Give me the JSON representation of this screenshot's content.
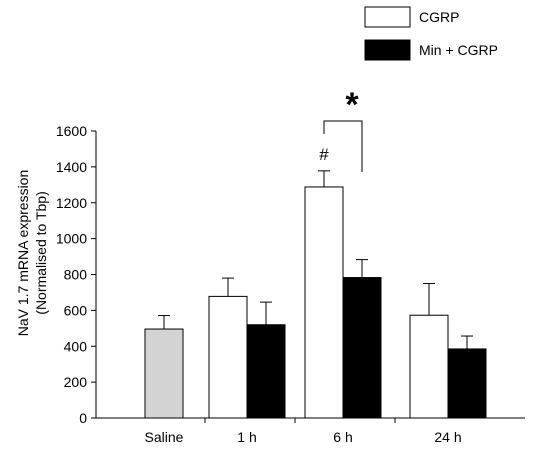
{
  "chart_data": {
    "type": "bar",
    "title": "",
    "xlabel": "",
    "ylabel_lines": [
      "NaV 1.7 mRNA expression",
      "(Normalised to Tbp)"
    ],
    "ylim": [
      0,
      1600
    ],
    "yticks": [
      0,
      200,
      400,
      600,
      800,
      1000,
      1200,
      1400,
      1600
    ],
    "categories": [
      "Saline",
      "1 h",
      "6 h",
      "24 h"
    ],
    "series": [
      {
        "name": "",
        "key": "saline",
        "color": "#d3d3d3",
        "values": [
          496,
          null,
          null,
          null
        ],
        "errors": [
          75,
          null,
          null,
          null
        ]
      },
      {
        "name": "CGRP",
        "key": "cgrp",
        "color": "#ffffff",
        "values": [
          null,
          678,
          1288,
          573
        ],
        "errors": [
          null,
          102,
          90,
          177
        ]
      },
      {
        "name": "Min + CGRP",
        "key": "min-cgrp",
        "color": "#000000",
        "values": [
          null,
          520,
          783,
          385
        ],
        "errors": [
          null,
          126,
          100,
          72
        ]
      }
    ],
    "legend": {
      "position": "top-right",
      "entries": [
        {
          "label": "CGRP",
          "color": "#ffffff"
        },
        {
          "label": "Min + CGRP",
          "color": "#000000"
        }
      ]
    },
    "annotations": {
      "hash": "#",
      "asterisk": "*"
    },
    "grid": false
  }
}
